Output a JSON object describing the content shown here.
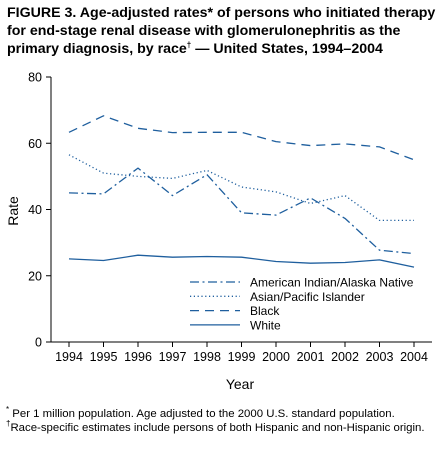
{
  "title": {
    "line1": "FIGURE 3. Age-adjusted rates* of persons who initiated therapy",
    "line2": "for end-stage renal disease with glomerulonephritis as the",
    "line3_prefix": "primary diagnosis, by race",
    "line3_mark": "†",
    "line3_suffix": " — United States, 1994–2004"
  },
  "footnotes": {
    "note1_mark": "*",
    "note1": " Per 1 million population. Age adjusted to the 2000 U.S. standard population.",
    "note2_mark": "†",
    "note2": "Race-specific estimates include persons of both Hispanic and non-Hispanic origin."
  },
  "chart_data": {
    "type": "line",
    "title": "",
    "xlabel": "Year",
    "ylabel": "Rate",
    "x": [
      "1994",
      "1995",
      "1996",
      "1997",
      "1998",
      "1999",
      "2000",
      "2001",
      "2002",
      "2003",
      "2004"
    ],
    "ylim": [
      0,
      80
    ],
    "yticks": [
      "0",
      "20",
      "40",
      "60",
      "80"
    ],
    "grid": false,
    "legend_position": "bottom-right",
    "series": [
      {
        "name": "American Indian/Alaska Native",
        "style": "dash-dot",
        "values": [
          45.0,
          44.7,
          52.5,
          44.2,
          50.5,
          39.0,
          38.3,
          43.5,
          37.3,
          27.7,
          26.7
        ]
      },
      {
        "name": "Asian/Pacific Islander",
        "style": "dotted",
        "values": [
          56.5,
          51.0,
          50.0,
          49.4,
          51.8,
          46.8,
          45.3,
          41.8,
          44.2,
          36.7,
          36.7
        ]
      },
      {
        "name": "Black",
        "style": "dashed",
        "values": [
          63.3,
          68.3,
          64.5,
          63.2,
          63.3,
          63.3,
          60.5,
          59.3,
          59.8,
          58.9,
          55.0
        ]
      },
      {
        "name": "White",
        "style": "solid",
        "values": [
          25.1,
          24.6,
          26.2,
          25.6,
          25.8,
          25.6,
          24.3,
          23.8,
          24.0,
          24.8,
          22.6
        ]
      }
    ],
    "colors": {
      "line": "#1f5f9e",
      "axis": "#000000"
    }
  }
}
